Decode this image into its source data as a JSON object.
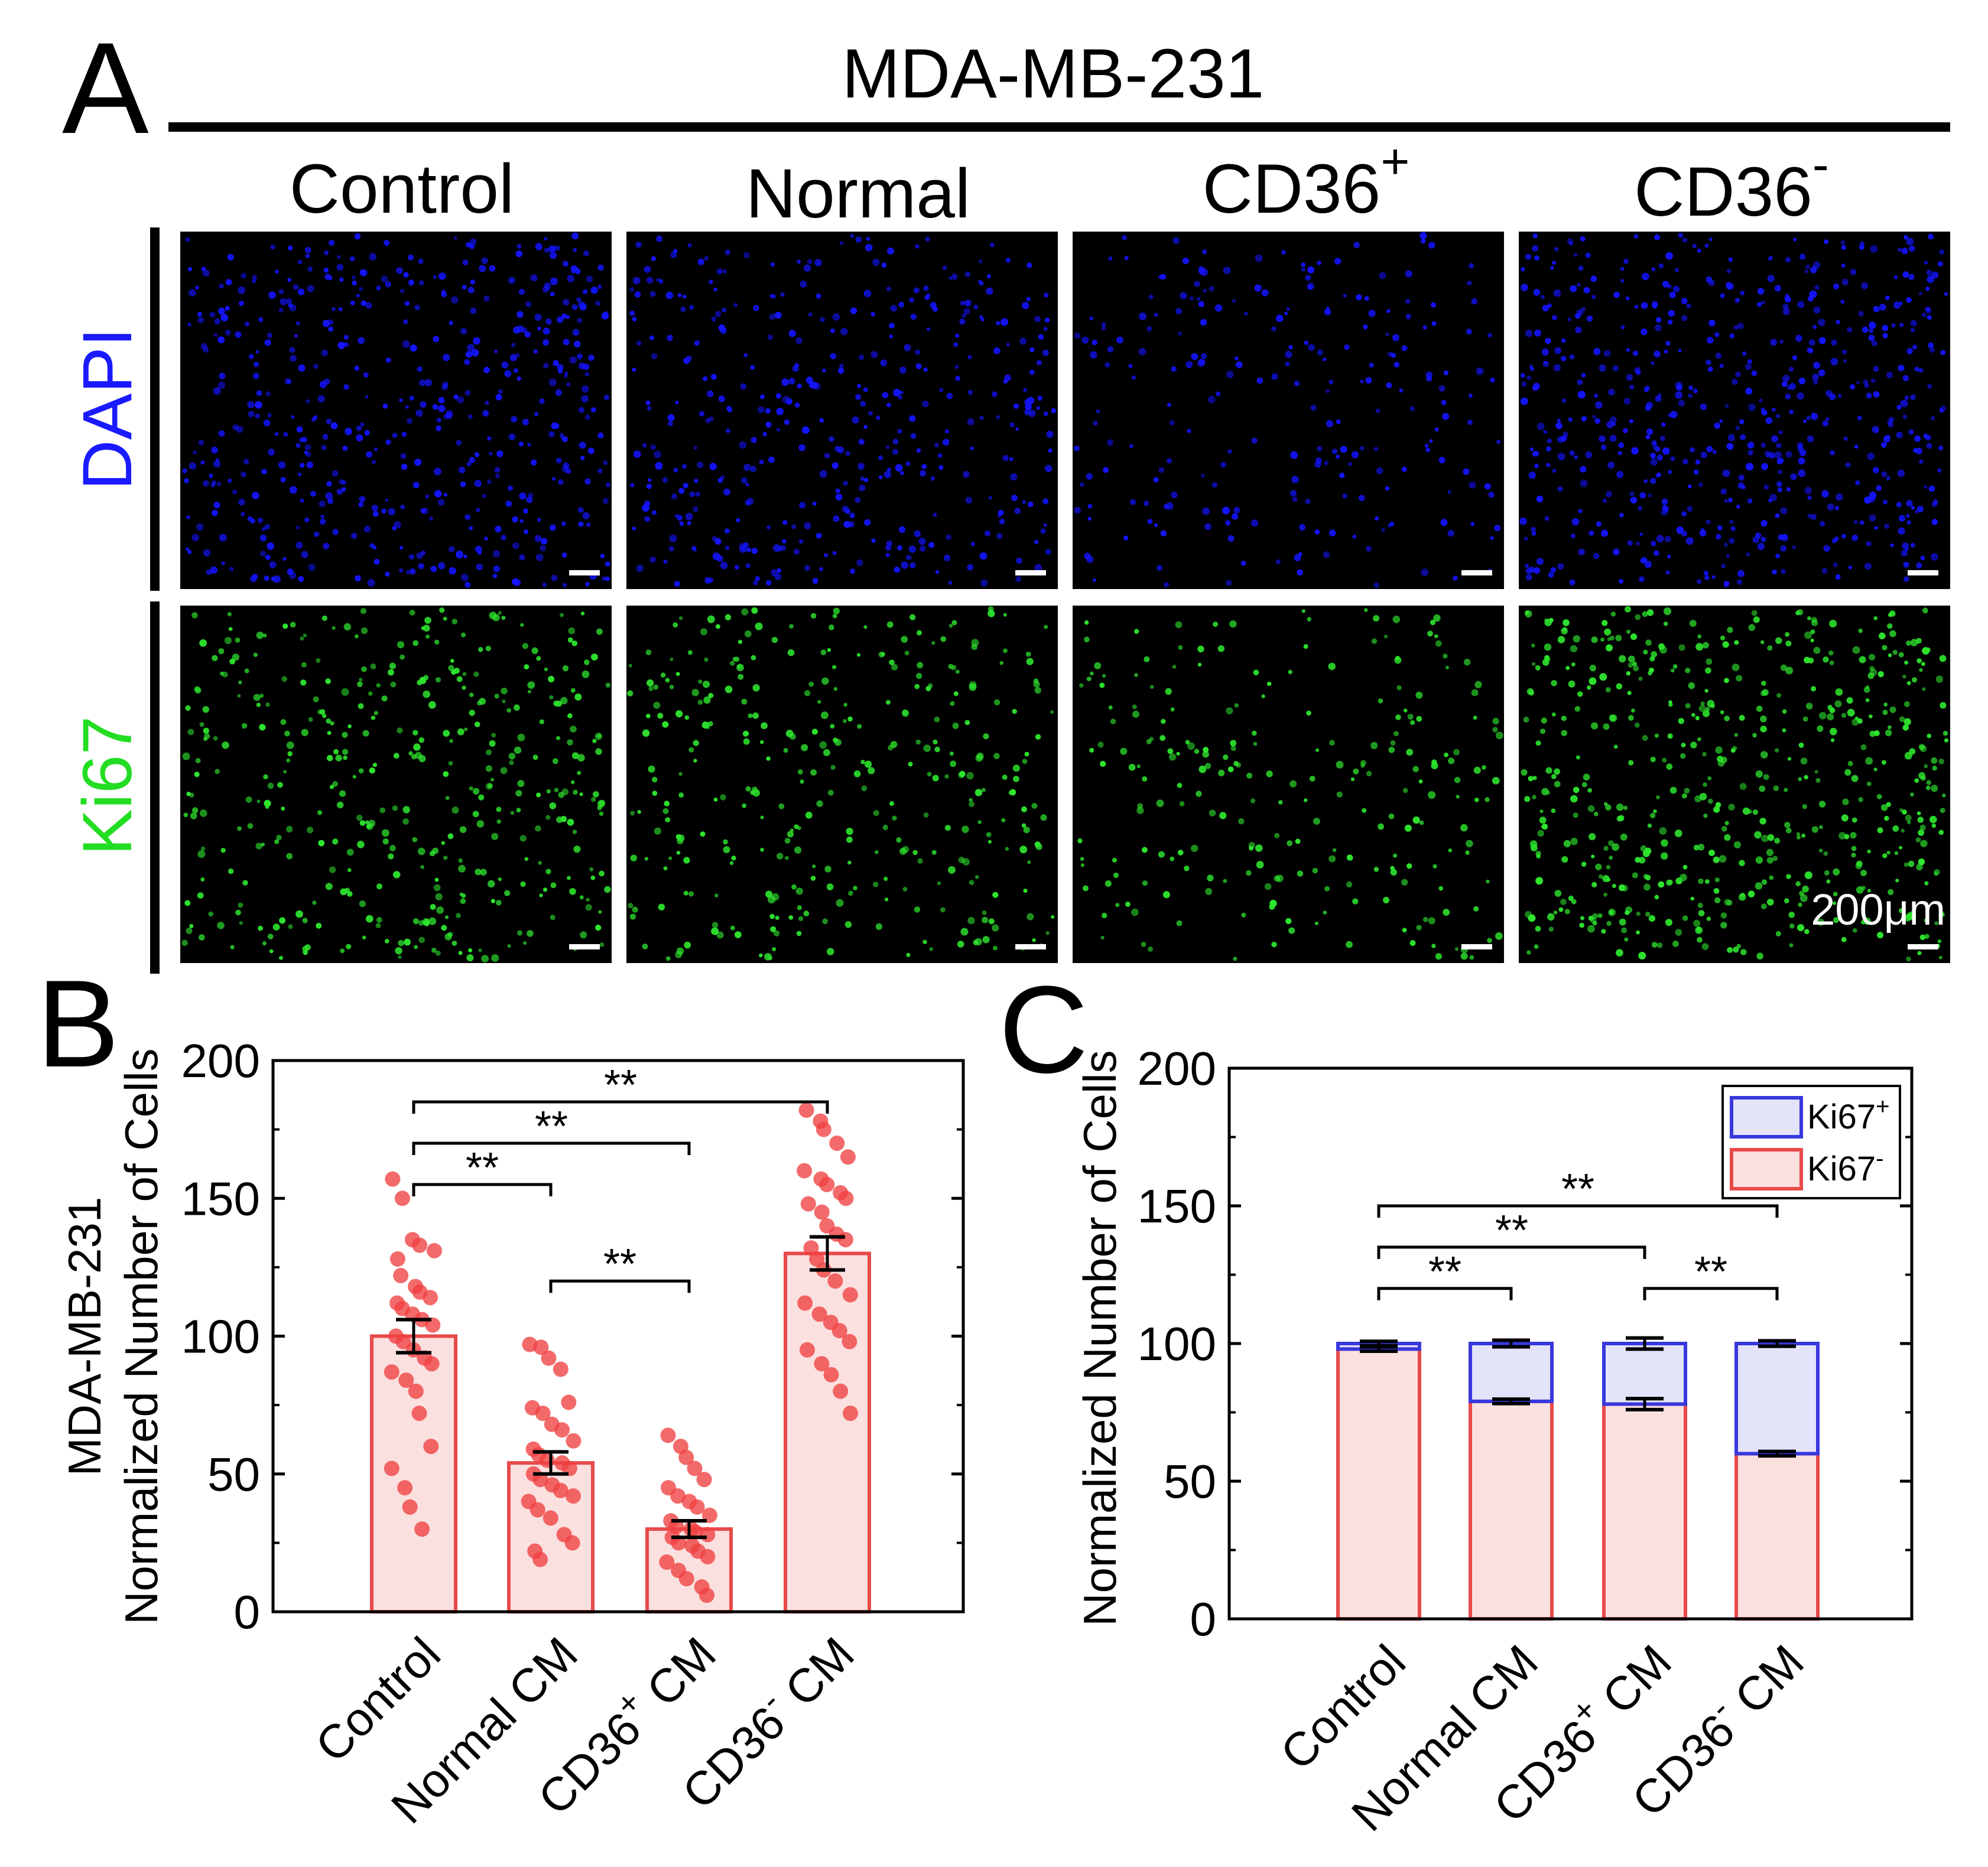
{
  "panel_a": {
    "letter": "A",
    "cell_line": "MDA-MB-231",
    "columns": [
      {
        "label": "Control",
        "sup": ""
      },
      {
        "label": "Normal",
        "sup": ""
      },
      {
        "label": "CD36",
        "sup": "+"
      },
      {
        "label": "CD36",
        "sup": "-"
      }
    ],
    "rows": [
      {
        "label": "DAPI",
        "color": "#1a1aff",
        "dot_color": "#1414ff",
        "density": [
          1.0,
          0.8,
          0.45,
          1.15
        ]
      },
      {
        "label": "Ki67",
        "color": "#22dd22",
        "dot_color": "#2ee62e",
        "density": [
          0.8,
          0.65,
          0.45,
          1.1
        ]
      }
    ],
    "scale_bar_label": "200μm"
  },
  "panel_b": {
    "letter": "B"
  },
  "panel_c": {
    "letter": "C"
  },
  "chart_data": [
    {
      "type": "bar",
      "panel": "B",
      "title": "",
      "ylabel": "MDA-MB-231 Normalized Number of Cells",
      "ylabel_lines": [
        "MDA-MB-231",
        "Normalized Number of Cells"
      ],
      "ylim": [
        0,
        200
      ],
      "yticks": [
        0,
        50,
        100,
        150,
        200
      ],
      "categories": [
        {
          "main": "Control",
          "sup": "",
          "tail": ""
        },
        {
          "main": "Normal CM",
          "sup": "",
          "tail": ""
        },
        {
          "main": "CD36",
          "sup": "+",
          "tail": " CM"
        },
        {
          "main": "CD36",
          "sup": "-",
          "tail": " CM"
        }
      ],
      "values": [
        100,
        54,
        30,
        130
      ],
      "errors": [
        6,
        4,
        3,
        6
      ],
      "bar_fill": "#fbe0e0",
      "bar_edge": "#e84a4a",
      "point_color": "#ef4040",
      "points": [
        [
          157,
          150,
          135,
          133,
          131,
          128,
          122,
          118,
          116,
          114,
          112,
          110,
          108,
          106,
          104,
          100,
          98,
          95,
          92,
          90,
          87,
          84,
          80,
          72,
          60,
          52,
          45,
          38,
          30
        ],
        [
          97,
          96,
          92,
          88,
          76,
          74,
          72,
          68,
          66,
          62,
          59,
          57,
          55,
          54,
          52,
          50,
          48,
          46,
          44,
          42,
          40,
          37,
          34,
          28,
          25,
          22,
          19
        ],
        [
          64,
          60,
          56,
          52,
          48,
          45,
          42,
          40,
          38,
          35,
          33,
          31,
          30,
          29,
          28,
          27,
          25,
          24,
          22,
          20,
          18,
          15,
          12,
          9,
          6
        ],
        [
          182,
          178,
          175,
          170,
          165,
          160,
          157,
          155,
          152,
          150,
          148,
          145,
          140,
          137,
          135,
          132,
          128,
          124,
          120,
          115,
          112,
          108,
          105,
          102,
          98,
          95,
          90,
          86,
          80,
          72
        ]
      ],
      "significance": [
        {
          "from": 0,
          "to": 1,
          "y": 155,
          "label": "**"
        },
        {
          "from": 0,
          "to": 2,
          "y": 170,
          "label": "**"
        },
        {
          "from": 0,
          "to": 3,
          "y": 185,
          "label": "**"
        },
        {
          "from": 1,
          "to": 2,
          "y": 120,
          "label": "**"
        }
      ],
      "grid": false
    },
    {
      "type": "bar",
      "stacked": true,
      "panel": "C",
      "title": "",
      "ylabel": "Normalized Number of Cells",
      "ylim": [
        0,
        200
      ],
      "yticks": [
        0,
        50,
        100,
        150,
        200
      ],
      "categories": [
        {
          "main": "Control",
          "sup": "",
          "tail": ""
        },
        {
          "main": "Normal CM",
          "sup": "",
          "tail": ""
        },
        {
          "main": "CD36",
          "sup": "+",
          "tail": " CM"
        },
        {
          "main": "CD36",
          "sup": "-",
          "tail": " CM"
        }
      ],
      "series": [
        {
          "name": "Ki67",
          "sup": "-",
          "values": [
            98,
            79,
            78,
            60
          ],
          "errors": [
            0.8,
            0.8,
            2,
            0.8
          ],
          "fill": "#fbe0e0",
          "edge": "#e84a4a"
        },
        {
          "name": "Ki67",
          "sup": "+",
          "values": [
            2,
            21,
            22,
            40
          ],
          "errors": [
            0.8,
            1.2,
            2,
            1.0
          ],
          "fill": "#e3e3fa",
          "edge": "#3838dd"
        }
      ],
      "legend": {
        "position": "top-right"
      },
      "significance": [
        {
          "from": 0,
          "to": 1,
          "y": 120,
          "label": "**"
        },
        {
          "from": 0,
          "to": 2,
          "y": 135,
          "label": "**"
        },
        {
          "from": 0,
          "to": 3,
          "y": 150,
          "label": "**"
        },
        {
          "from": 2,
          "to": 3,
          "y": 120,
          "label": "**"
        }
      ],
      "grid": false
    }
  ]
}
